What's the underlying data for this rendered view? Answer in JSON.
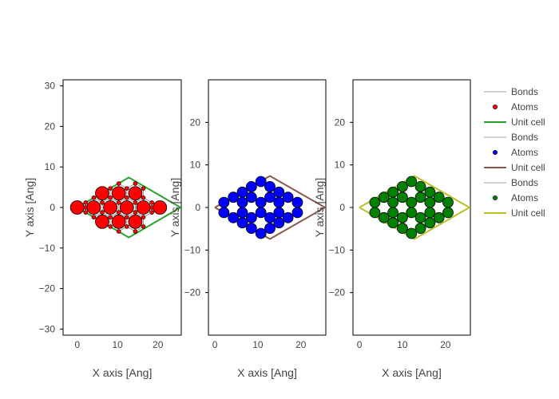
{
  "chart_data": [
    {
      "type": "scatter",
      "xlabel": "X axis [Ang]",
      "ylabel": "Y axis [Ang]",
      "xlim": [
        -3.5,
        25.8
      ],
      "ylim": [
        -31.5,
        31.5
      ],
      "xticks": [
        0,
        10,
        20
      ],
      "yticks": [
        -30,
        -20,
        -10,
        0,
        10,
        20,
        30
      ],
      "atom_color": "#ff0000",
      "cell_color": "#2ca02c",
      "bond_color": "#808080",
      "unit_cell": [
        [
          0,
          0
        ],
        [
          12.8,
          7.4
        ],
        [
          25.6,
          0
        ],
        [
          12.8,
          -7.4
        ],
        [
          0,
          0
        ]
      ],
      "atoms_large": [
        [
          0,
          0
        ],
        [
          4.1,
          0
        ],
        [
          8.2,
          0
        ],
        [
          12.3,
          0
        ],
        [
          16.4,
          0
        ],
        [
          20.5,
          0
        ],
        [
          6.2,
          3.5
        ],
        [
          10.3,
          3.5
        ],
        [
          14.4,
          3.5
        ],
        [
          6.2,
          -3.5
        ],
        [
          10.3,
          -3.5
        ],
        [
          14.4,
          -3.5
        ]
      ],
      "atoms_small": [
        [
          2.1,
          1.2
        ],
        [
          2.1,
          -1.2
        ],
        [
          4.1,
          2.4
        ],
        [
          4.1,
          -2.4
        ],
        [
          6.2,
          1.2
        ],
        [
          6.2,
          -1.2
        ],
        [
          8.2,
          2.4
        ],
        [
          8.2,
          -2.4
        ],
        [
          10.3,
          1.2
        ],
        [
          10.3,
          -1.2
        ],
        [
          12.3,
          2.4
        ],
        [
          12.3,
          -2.4
        ],
        [
          14.4,
          1.2
        ],
        [
          14.4,
          -1.2
        ],
        [
          16.4,
          2.4
        ],
        [
          16.4,
          -2.4
        ],
        [
          18.5,
          1.2
        ],
        [
          18.5,
          -1.2
        ],
        [
          8.2,
          4.7
        ],
        [
          8.2,
          -4.7
        ],
        [
          10.3,
          5.9
        ],
        [
          10.3,
          -5.9
        ],
        [
          12.3,
          4.7
        ],
        [
          12.3,
          -4.7
        ],
        [
          14.4,
          5.9
        ],
        [
          14.4,
          -5.9
        ],
        [
          16.4,
          4.7
        ],
        [
          16.4,
          -4.7
        ],
        [
          2.1,
          0
        ],
        [
          18.5,
          0
        ]
      ]
    },
    {
      "type": "scatter",
      "xlabel": "X axis [Ang]",
      "ylabel": "Y axis [Ang]",
      "xlim": [
        -1.5,
        25.8
      ],
      "ylim": [
        -30,
        30
      ],
      "xticks": [
        0,
        10,
        20
      ],
      "yticks": [
        -20,
        -10,
        0,
        10,
        20
      ],
      "atom_color": "#0000ff",
      "cell_color": "#8c564b",
      "bond_color": "#808080",
      "unit_cell": [
        [
          0,
          0
        ],
        [
          12.8,
          7.4
        ],
        [
          25.6,
          0
        ],
        [
          12.8,
          -7.4
        ],
        [
          0,
          0
        ]
      ],
      "atoms": [
        [
          2.1,
          1.2
        ],
        [
          2.1,
          -1.2
        ],
        [
          4.3,
          2.4
        ],
        [
          4.3,
          -2.4
        ],
        [
          6.4,
          1.2
        ],
        [
          6.4,
          -1.2
        ],
        [
          8.5,
          2.4
        ],
        [
          8.5,
          -2.4
        ],
        [
          10.7,
          1.2
        ],
        [
          10.7,
          -1.2
        ],
        [
          12.8,
          2.4
        ],
        [
          12.8,
          -2.4
        ],
        [
          14.9,
          1.2
        ],
        [
          14.9,
          -1.2
        ],
        [
          17.0,
          2.4
        ],
        [
          17.0,
          -2.4
        ],
        [
          19.2,
          1.2
        ],
        [
          19.2,
          -1.2
        ],
        [
          8.5,
          4.9
        ],
        [
          8.5,
          -4.9
        ],
        [
          10.7,
          6.1
        ],
        [
          10.7,
          -6.1
        ],
        [
          12.8,
          4.9
        ],
        [
          12.8,
          -4.9
        ],
        [
          14.9,
          3.6
        ],
        [
          14.9,
          -3.6
        ],
        [
          6.4,
          3.6
        ],
        [
          6.4,
          -3.6
        ]
      ]
    },
    {
      "type": "scatter",
      "xlabel": "X axis [Ang]",
      "ylabel": "Y axis [Ang]",
      "xlim": [
        -1.5,
        25.8
      ],
      "ylim": [
        -30,
        30
      ],
      "xticks": [
        0,
        10,
        20
      ],
      "yticks": [
        -20,
        -10,
        0,
        10,
        20
      ],
      "atom_color": "#008000",
      "cell_color": "#bcbd22",
      "bond_color": "#808080",
      "unit_cell": [
        [
          0,
          0
        ],
        [
          12.8,
          7.4
        ],
        [
          25.6,
          0
        ],
        [
          12.8,
          -7.4
        ],
        [
          0,
          0
        ]
      ],
      "atoms": [
        [
          3.6,
          1.2
        ],
        [
          3.6,
          -1.2
        ],
        [
          5.7,
          2.4
        ],
        [
          5.7,
          -2.4
        ],
        [
          7.8,
          1.2
        ],
        [
          7.8,
          -1.2
        ],
        [
          10.0,
          2.4
        ],
        [
          10.0,
          -2.4
        ],
        [
          12.1,
          1.2
        ],
        [
          12.1,
          -1.2
        ],
        [
          14.2,
          2.4
        ],
        [
          14.2,
          -2.4
        ],
        [
          16.4,
          1.2
        ],
        [
          16.4,
          -1.2
        ],
        [
          18.5,
          2.4
        ],
        [
          18.5,
          -2.4
        ],
        [
          20.6,
          1.2
        ],
        [
          20.6,
          -1.2
        ],
        [
          10.0,
          4.9
        ],
        [
          10.0,
          -4.9
        ],
        [
          12.1,
          6.1
        ],
        [
          12.1,
          -6.1
        ],
        [
          14.2,
          4.9
        ],
        [
          14.2,
          -4.9
        ],
        [
          7.8,
          3.6
        ],
        [
          7.8,
          -3.6
        ],
        [
          16.4,
          3.6
        ],
        [
          16.4,
          -3.6
        ]
      ]
    }
  ],
  "legend": {
    "placement": "right",
    "entries": [
      {
        "label": "Bonds",
        "kind": "line-thin",
        "color": "#808080"
      },
      {
        "label": "Atoms",
        "kind": "marker",
        "color": "#ff0000"
      },
      {
        "label": "Unit cell",
        "kind": "line",
        "color": "#2ca02c"
      },
      {
        "label": "Bonds",
        "kind": "line-thin",
        "color": "#808080"
      },
      {
        "label": "Atoms",
        "kind": "marker",
        "color": "#0000ff"
      },
      {
        "label": "Unit cell",
        "kind": "line",
        "color": "#8c564b"
      },
      {
        "label": "Bonds",
        "kind": "line-thin",
        "color": "#808080"
      },
      {
        "label": "Atoms",
        "kind": "marker",
        "color": "#008000"
      },
      {
        "label": "Unit cell",
        "kind": "line",
        "color": "#bcbd22"
      }
    ]
  }
}
